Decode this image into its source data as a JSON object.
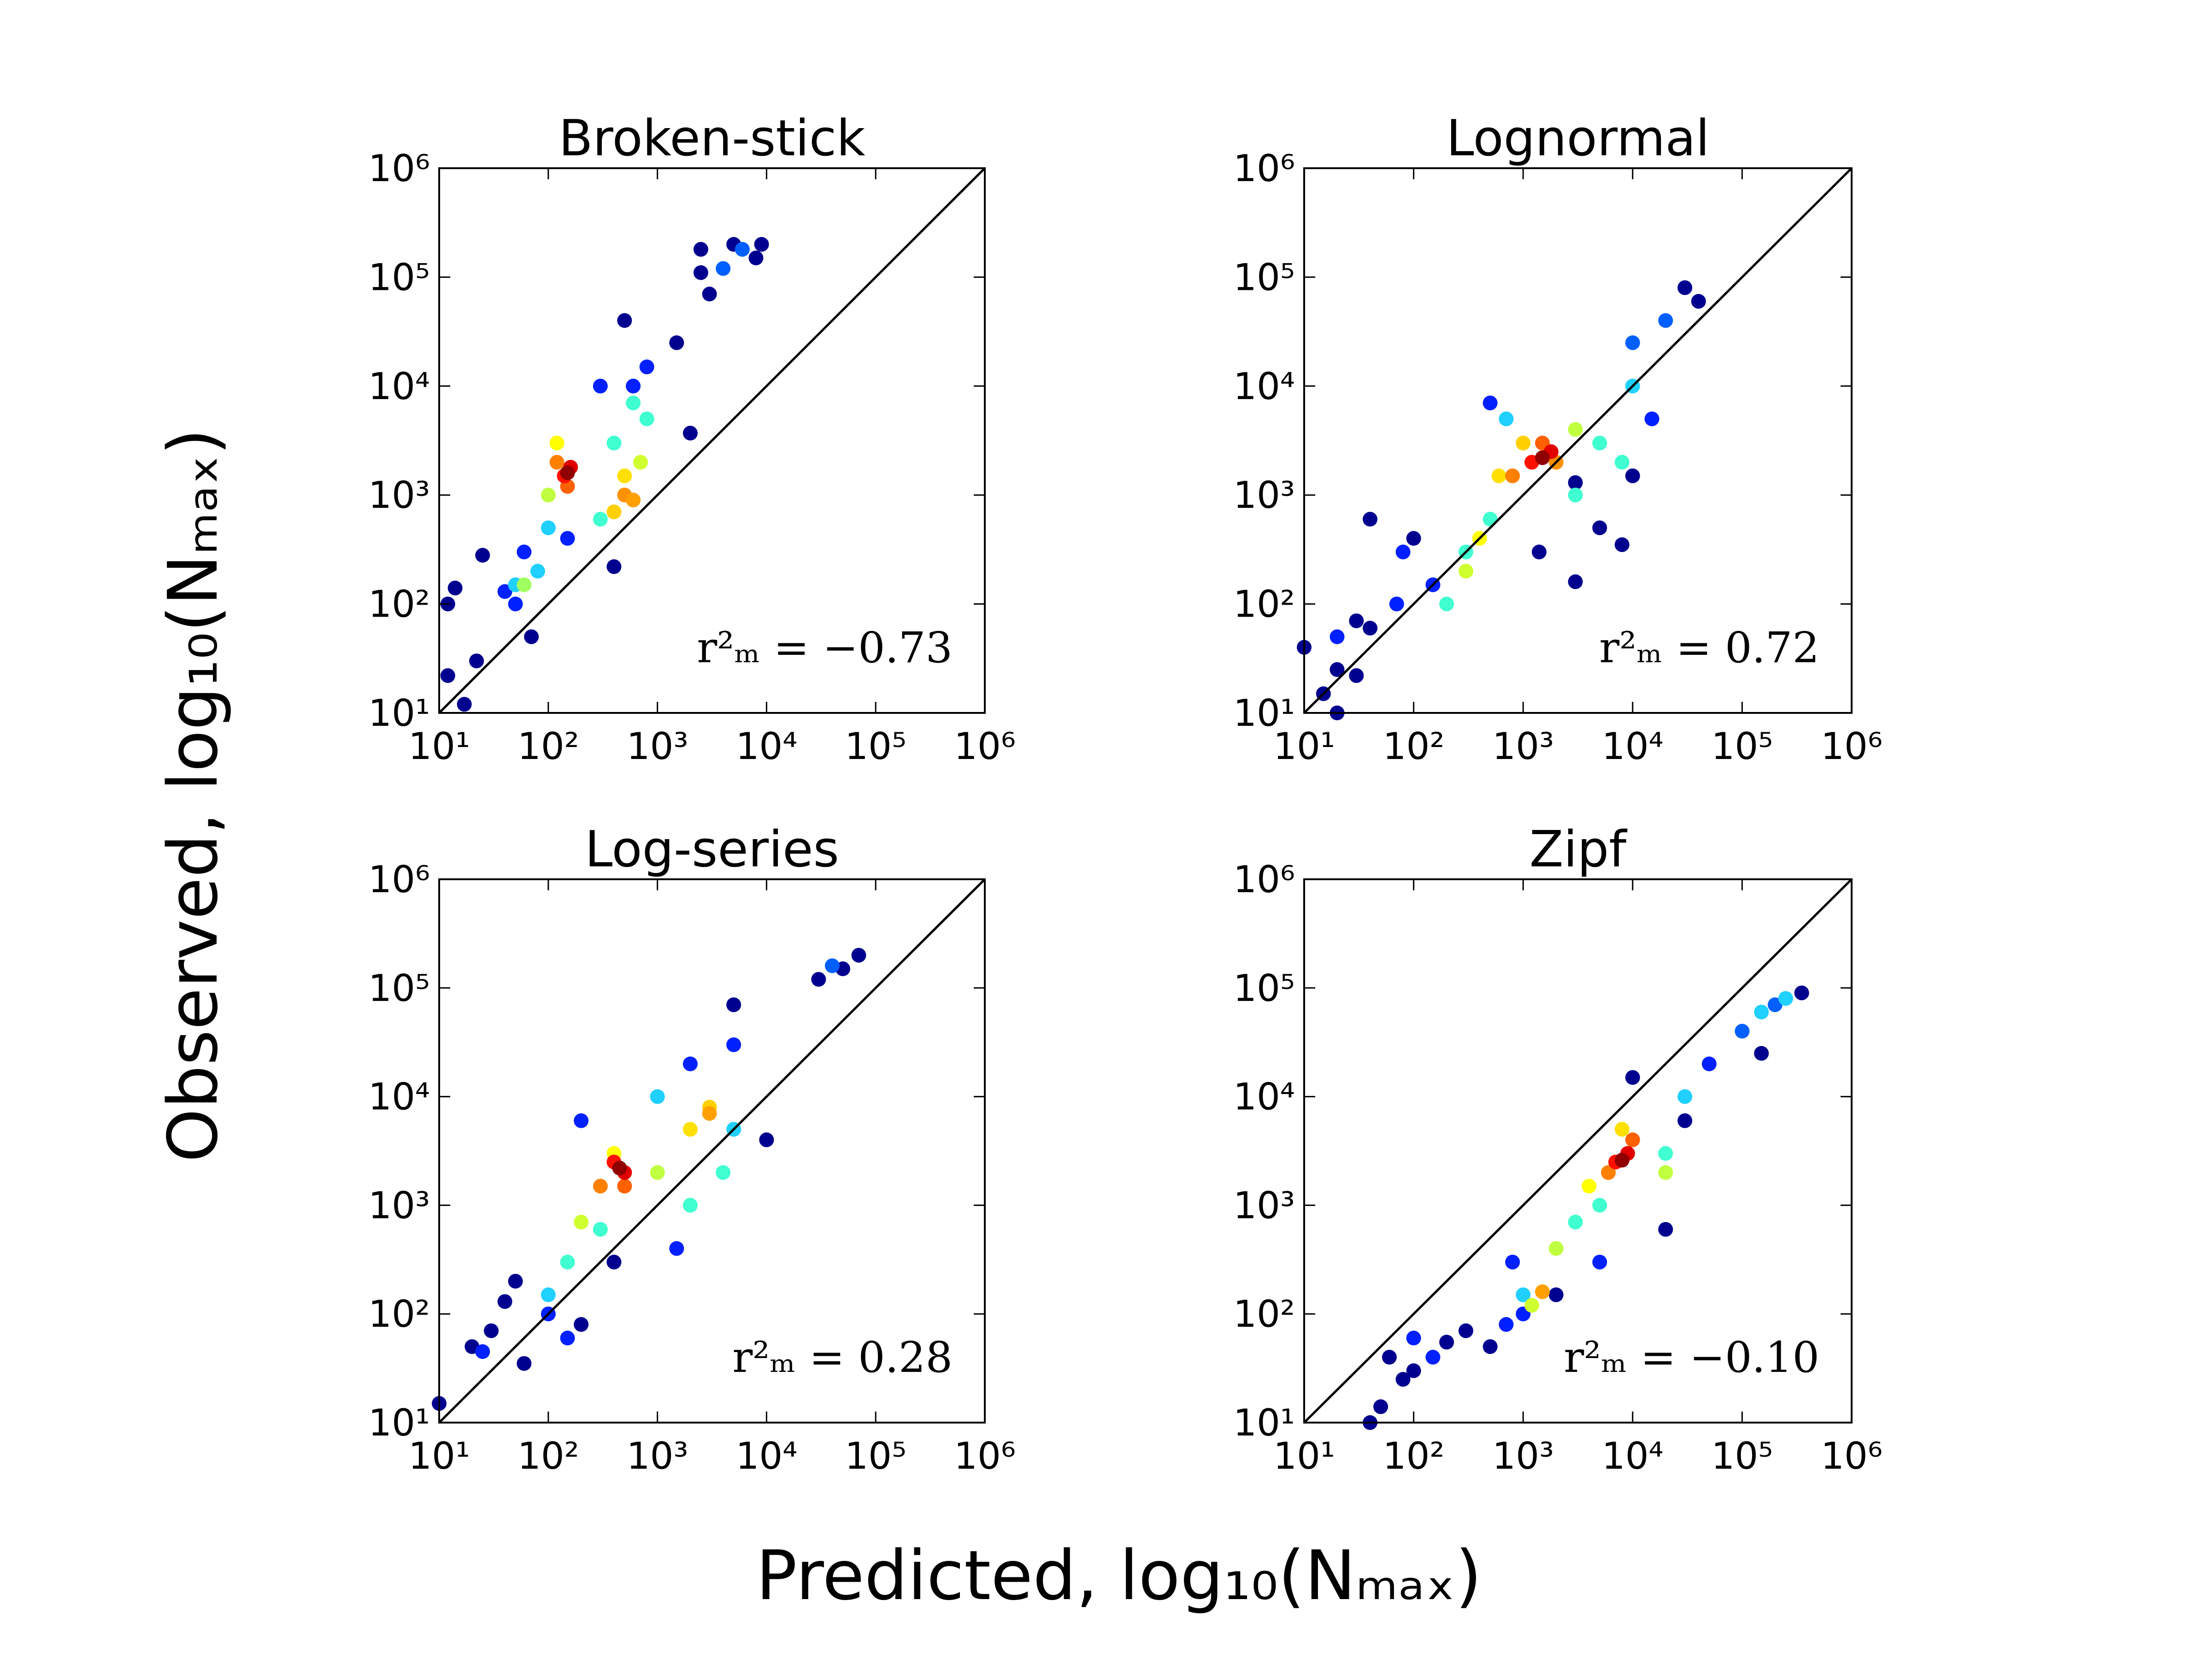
{
  "figure": {
    "x_label": "Predicted, log₁₀(Nₘₐₓ)",
    "y_label": "Observed, log₁₀(Nₘₐₓ)"
  },
  "chart_data": [
    {
      "type": "scatter",
      "title": "Broken-stick",
      "annotation": "r²ₘ = −0.73",
      "log_scale": true,
      "xlim": [
        10,
        1000000
      ],
      "ylim": [
        10,
        1000000
      ],
      "xticks": [
        {
          "value": 10,
          "label": "10¹"
        },
        {
          "value": 100,
          "label": "10²"
        },
        {
          "value": 1000,
          "label": "10³"
        },
        {
          "value": 10000,
          "label": "10⁴"
        },
        {
          "value": 100000,
          "label": "10⁵"
        },
        {
          "value": 1000000,
          "label": "10⁶"
        }
      ],
      "yticks": [
        {
          "value": 10,
          "label": "10¹"
        },
        {
          "value": 100,
          "label": "10²"
        },
        {
          "value": 1000,
          "label": "10³"
        },
        {
          "value": 10000,
          "label": "10⁴"
        },
        {
          "value": 100000,
          "label": "10⁵"
        },
        {
          "value": 1000000,
          "label": "10⁶"
        }
      ],
      "x": [
        12,
        14,
        12,
        17,
        22,
        25,
        70,
        400,
        2000,
        2500,
        2500,
        3000,
        5000,
        8000,
        9000,
        1500,
        500,
        60,
        40,
        50,
        800,
        300,
        150,
        600,
        4000,
        6000,
        50,
        80,
        100,
        400,
        600,
        800,
        300,
        60,
        100,
        120,
        500,
        700,
        400,
        120,
        150,
        500,
        600,
        140,
        160,
        150
      ],
      "values": [
        100,
        140,
        22,
        12,
        30,
        280,
        50,
        220,
        3700,
        180000,
        110000,
        70000,
        200000,
        150000,
        200000,
        25000,
        40000,
        300,
        130,
        100,
        15000,
        10000,
        400,
        10000,
        120000,
        180000,
        150,
        200,
        500,
        3000,
        7000,
        5000,
        600,
        150,
        1000,
        3000,
        1500,
        2000,
        700,
        2000,
        1200,
        1000,
        900,
        1500,
        1800,
        1600
      ],
      "colors": [
        "#00008f",
        "#00008f",
        "#00008f",
        "#00008f",
        "#00008f",
        "#00008f",
        "#00008f",
        "#00008f",
        "#00008f",
        "#00008f",
        "#00008f",
        "#00008f",
        "#00008f",
        "#00008f",
        "#00008f",
        "#00008f",
        "#00008f",
        "#0020ff",
        "#0020ff",
        "#0020ff",
        "#0020ff",
        "#0020ff",
        "#0020ff",
        "#0020ff",
        "#0060ff",
        "#0060ff",
        "#20d0ff",
        "#20d0ff",
        "#20d0ff",
        "#40ffd0",
        "#40ffd0",
        "#40ffd0",
        "#40ffd0",
        "#a0ff60",
        "#c0ff40",
        "#ffff00",
        "#ffe000",
        "#d0ff30",
        "#ffd000",
        "#ff8000",
        "#ff6000",
        "#ff9000",
        "#ffa000",
        "#ff1000",
        "#e00000",
        "#900000"
      ]
    },
    {
      "type": "scatter",
      "title": "Lognormal",
      "annotation": "r²ₘ = 0.72",
      "log_scale": true,
      "xlim": [
        10,
        1000000
      ],
      "ylim": [
        10,
        1000000
      ],
      "xticks": [
        {
          "value": 10,
          "label": "10¹"
        },
        {
          "value": 100,
          "label": "10²"
        },
        {
          "value": 1000,
          "label": "10³"
        },
        {
          "value": 10000,
          "label": "10⁴"
        },
        {
          "value": 100000,
          "label": "10⁵"
        },
        {
          "value": 1000000,
          "label": "10⁶"
        }
      ],
      "yticks": [
        {
          "value": 10,
          "label": "10¹"
        },
        {
          "value": 100,
          "label": "10²"
        },
        {
          "value": 1000,
          "label": "10³"
        },
        {
          "value": 10000,
          "label": "10⁴"
        },
        {
          "value": 100000,
          "label": "10⁵"
        },
        {
          "value": 1000000,
          "label": "10⁶"
        }
      ],
      "x": [
        10,
        15,
        20,
        30,
        40,
        30,
        20,
        100,
        40,
        8000,
        1400,
        3000,
        30000,
        40000,
        10000,
        3000,
        5000,
        20,
        70,
        80,
        10000,
        20000,
        15000,
        500,
        150,
        200,
        300,
        500,
        3000,
        5000,
        8000,
        700,
        10000,
        300,
        400,
        600,
        1000,
        3000,
        800,
        1500,
        2000,
        1200,
        1800,
        1500
      ],
      "values": [
        40,
        15,
        25,
        22,
        60,
        70,
        10,
        400,
        600,
        350,
        300,
        160,
        80000,
        60000,
        1500,
        1300,
        500,
        50,
        100,
        300,
        25000,
        40000,
        5000,
        7000,
        150,
        100,
        300,
        600,
        1000,
        3000,
        2000,
        5000,
        10000,
        200,
        400,
        1500,
        3000,
        4000,
        1500,
        3000,
        2000,
        2000,
        2500,
        2200
      ],
      "colors": [
        "#00008f",
        "#00008f",
        "#00008f",
        "#00008f",
        "#00008f",
        "#00008f",
        "#00008f",
        "#00008f",
        "#00008f",
        "#00008f",
        "#00008f",
        "#00008f",
        "#00008f",
        "#00008f",
        "#00008f",
        "#00008f",
        "#00008f",
        "#0020ff",
        "#0020ff",
        "#0020ff",
        "#0060ff",
        "#0060ff",
        "#0020ff",
        "#0020ff",
        "#0020ff",
        "#40ffd0",
        "#40ffd0",
        "#40ffd0",
        "#40ffd0",
        "#40ffd0",
        "#40ffd0",
        "#20d0ff",
        "#20d0ff",
        "#d0ff30",
        "#ffff00",
        "#ffe000",
        "#ffd000",
        "#c0ff40",
        "#ff8000",
        "#ff6000",
        "#ff9000",
        "#ff1000",
        "#e00000",
        "#900000"
      ]
    },
    {
      "type": "scatter",
      "title": "Log-series",
      "annotation": "r²ₘ = 0.28",
      "log_scale": true,
      "xlim": [
        10,
        1000000
      ],
      "ylim": [
        10,
        1000000
      ],
      "xticks": [
        {
          "value": 10,
          "label": "10¹"
        },
        {
          "value": 100,
          "label": "10²"
        },
        {
          "value": 1000,
          "label": "10³"
        },
        {
          "value": 10000,
          "label": "10⁴"
        },
        {
          "value": 100000,
          "label": "10⁵"
        },
        {
          "value": 1000000,
          "label": "10⁶"
        }
      ],
      "yticks": [
        {
          "value": 10,
          "label": "10¹"
        },
        {
          "value": 100,
          "label": "10²"
        },
        {
          "value": 1000,
          "label": "10³"
        },
        {
          "value": 10000,
          "label": "10⁴"
        },
        {
          "value": 100000,
          "label": "10⁵"
        },
        {
          "value": 1000000,
          "label": "10⁶"
        }
      ],
      "x": [
        10,
        60,
        20,
        30,
        40,
        50,
        10000,
        5000,
        30000,
        50000,
        70000,
        400,
        200,
        25,
        100,
        150,
        40000,
        2000,
        5000,
        1500,
        200,
        100,
        150,
        300,
        2000,
        4000,
        5000,
        1000,
        200,
        400,
        1000,
        2000,
        3000,
        300,
        500,
        3000,
        400,
        500,
        450
      ],
      "values": [
        15,
        35,
        50,
        70,
        130,
        200,
        4000,
        70000,
        120000,
        150000,
        200000,
        300,
        80,
        45,
        100,
        60,
        160000,
        20000,
        30000,
        400,
        6000,
        150,
        300,
        600,
        1000,
        2000,
        5000,
        10000,
        700,
        3000,
        2000,
        5000,
        8000,
        1500,
        1500,
        7000,
        2500,
        2000,
        2200
      ],
      "colors": [
        "#00008f",
        "#00008f",
        "#00008f",
        "#00008f",
        "#00008f",
        "#00008f",
        "#00008f",
        "#00008f",
        "#00008f",
        "#00008f",
        "#00008f",
        "#00008f",
        "#00008f",
        "#0020ff",
        "#0020ff",
        "#0020ff",
        "#0060ff",
        "#0020ff",
        "#0020ff",
        "#0020ff",
        "#0020ff",
        "#20d0ff",
        "#40ffd0",
        "#40ffd0",
        "#40ffd0",
        "#40ffd0",
        "#20d0ff",
        "#20d0ff",
        "#d0ff30",
        "#ffff00",
        "#c0ff40",
        "#ffe000",
        "#ffd000",
        "#ff8000",
        "#ff6000",
        "#ffa000",
        "#ff1000",
        "#e00000",
        "#900000"
      ]
    },
    {
      "type": "scatter",
      "title": "Zipf",
      "annotation": "r²ₘ = −0.10",
      "log_scale": true,
      "xlim": [
        10,
        1000000
      ],
      "ylim": [
        10,
        1000000
      ],
      "xticks": [
        {
          "value": 10,
          "label": "10¹"
        },
        {
          "value": 100,
          "label": "10²"
        },
        {
          "value": 1000,
          "label": "10³"
        },
        {
          "value": 10000,
          "label": "10⁴"
        },
        {
          "value": 100000,
          "label": "10⁵"
        },
        {
          "value": 1000000,
          "label": "10⁶"
        }
      ],
      "yticks": [
        {
          "value": 10,
          "label": "10¹"
        },
        {
          "value": 100,
          "label": "10²"
        },
        {
          "value": 1000,
          "label": "10³"
        },
        {
          "value": 10000,
          "label": "10⁴"
        },
        {
          "value": 100000,
          "label": "10⁵"
        },
        {
          "value": 1000000,
          "label": "10⁶"
        }
      ],
      "x": [
        40,
        50,
        60,
        80,
        100,
        200,
        500,
        300,
        20000,
        30000,
        350000,
        10000,
        150000,
        2000,
        100,
        150,
        700,
        1000,
        800,
        5000,
        100000,
        200000,
        50000,
        1000,
        3000,
        20000,
        30000,
        150000,
        250000,
        5000,
        1200,
        2000,
        4000,
        8000,
        20000,
        1500,
        6000,
        10000,
        7000,
        9000,
        8000
      ],
      "values": [
        10,
        14,
        40,
        25,
        30,
        55,
        50,
        70,
        600,
        6000,
        90000,
        15000,
        25000,
        150,
        60,
        40,
        80,
        100,
        300,
        300,
        40000,
        70000,
        20000,
        150,
        700,
        3000,
        10000,
        60000,
        80000,
        1000,
        120,
        400,
        1500,
        5000,
        2000,
        160,
        2000,
        4000,
        2500,
        3000,
        2600
      ],
      "colors": [
        "#00008f",
        "#00008f",
        "#00008f",
        "#00008f",
        "#00008f",
        "#00008f",
        "#00008f",
        "#00008f",
        "#00008f",
        "#00008f",
        "#00008f",
        "#00008f",
        "#00008f",
        "#00008f",
        "#0020ff",
        "#0020ff",
        "#0020ff",
        "#0020ff",
        "#0020ff",
        "#0020ff",
        "#0060ff",
        "#0060ff",
        "#0020ff",
        "#20d0ff",
        "#40ffd0",
        "#40ffd0",
        "#20d0ff",
        "#20d0ff",
        "#20d0ff",
        "#40ffd0",
        "#d0ff30",
        "#c0ff40",
        "#ffff00",
        "#ffe000",
        "#c0ff40",
        "#ffa000",
        "#ff8000",
        "#ff6000",
        "#ff1000",
        "#e00000",
        "#900000"
      ]
    }
  ]
}
